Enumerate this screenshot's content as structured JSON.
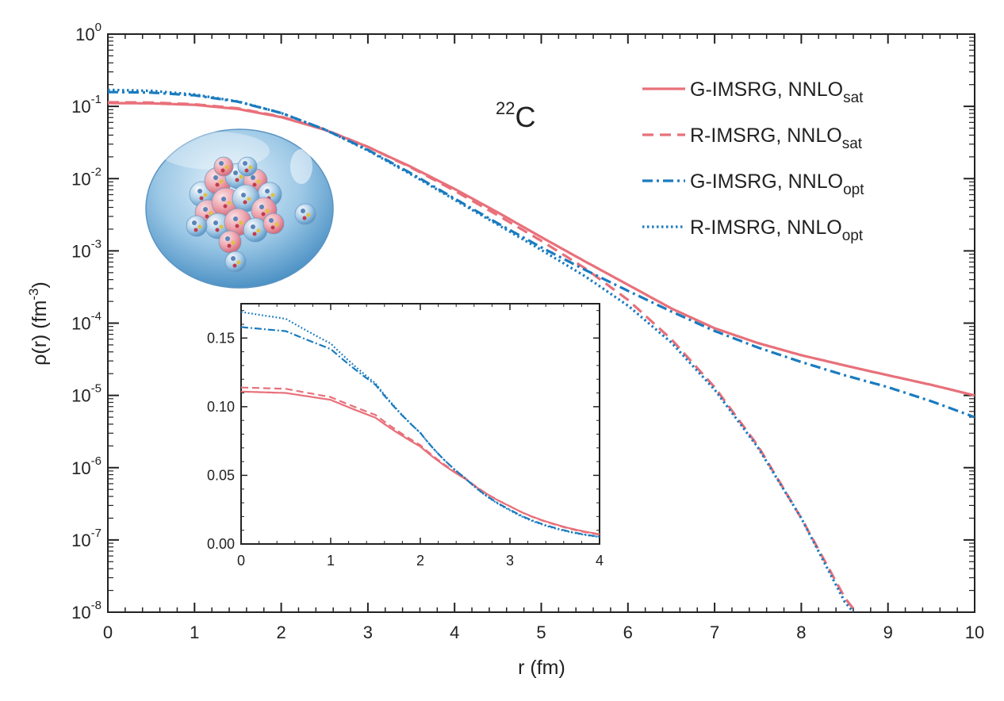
{
  "chart_data": [
    {
      "type": "line",
      "xlabel": "r (fm)",
      "ylabel_text": "ρ(r) (fm",
      "ylabel_exp": "-3",
      "ylabel_close": ")",
      "yscale": "log",
      "xlim": [
        0,
        10
      ],
      "ylim": [
        1e-08,
        1
      ],
      "x_ticks": [
        "0",
        "1",
        "2",
        "3",
        "4",
        "5",
        "6",
        "7",
        "8",
        "9",
        "10"
      ],
      "y_ticks": [
        {
          "base": "10",
          "exp": "0"
        },
        {
          "base": "10",
          "exp": "-1"
        },
        {
          "base": "10",
          "exp": "-2"
        },
        {
          "base": "10",
          "exp": "-3"
        },
        {
          "base": "10",
          "exp": "-4"
        },
        {
          "base": "10",
          "exp": "-5"
        },
        {
          "base": "10",
          "exp": "-6"
        },
        {
          "base": "10",
          "exp": "-7"
        },
        {
          "base": "10",
          "exp": "-8"
        }
      ],
      "annotation": {
        "mass": "22",
        "element": "C"
      },
      "series": [
        {
          "name_main": "G-IMSRG, NNLO",
          "name_sub": "sat",
          "color": "#e8707a",
          "style": "solid",
          "x": [
            0,
            0.5,
            1,
            1.5,
            2,
            2.5,
            3,
            3.5,
            4,
            4.5,
            5,
            5.5,
            6,
            6.5,
            7,
            7.5,
            8,
            8.5,
            9,
            9.5,
            10
          ],
          "y": [
            0.111,
            0.11,
            0.105,
            0.092,
            0.071,
            0.0475,
            0.0275,
            0.0145,
            0.0072,
            0.0034,
            0.00155,
            0.00072,
            0.00034,
            0.00016,
            8.5e-05,
            5.3e-05,
            3.6e-05,
            2.6e-05,
            1.9e-05,
            1.4e-05,
            1e-05
          ]
        },
        {
          "name_main": "R-IMSRG, NNLO",
          "name_sub": "sat",
          "color": "#e8707a",
          "style": "dashed",
          "x": [
            0,
            0.5,
            1,
            1.5,
            2,
            2.5,
            3,
            3.5,
            4,
            4.5,
            5,
            5.5,
            6,
            6.5,
            7,
            7.5,
            8,
            8.5,
            8.63
          ],
          "y": [
            0.114,
            0.113,
            0.107,
            0.094,
            0.072,
            0.048,
            0.0275,
            0.0142,
            0.0068,
            0.0031,
            0.00138,
            0.00058,
            0.00021,
            6e-05,
            1.3e-05,
            2e-06,
            2e-07,
            1.6e-08,
            1e-08
          ]
        },
        {
          "name_main": "G-IMSRG, NNLO",
          "name_sub": "opt",
          "color": "#1a7bbf",
          "style": "dashdot",
          "x": [
            0,
            0.5,
            1,
            1.5,
            2,
            2.5,
            3,
            3.5,
            4,
            4.5,
            5,
            5.5,
            6,
            6.5,
            7,
            7.5,
            8,
            8.5,
            9,
            9.5,
            10
          ],
          "y": [
            0.158,
            0.155,
            0.142,
            0.116,
            0.081,
            0.048,
            0.025,
            0.0118,
            0.0053,
            0.0024,
            0.00112,
            0.00055,
            0.00028,
            0.000145,
            7.8e-05,
            4.6e-05,
            2.9e-05,
            1.9e-05,
            1.3e-05,
            8.3e-06,
            5e-06
          ]
        },
        {
          "name_main": "R-IMSRG, NNLO",
          "name_sub": "opt",
          "color": "#1a7bbf",
          "style": "dotted",
          "x": [
            0,
            0.5,
            1,
            1.5,
            2,
            2.5,
            3,
            3.5,
            4,
            4.5,
            5,
            5.5,
            6,
            6.5,
            7,
            7.5,
            8,
            8.5,
            8.6
          ],
          "y": [
            0.169,
            0.164,
            0.146,
            0.117,
            0.081,
            0.048,
            0.0245,
            0.0114,
            0.0051,
            0.0023,
            0.00103,
            0.00045,
            0.000175,
            5.4e-05,
            1.2e-05,
            1.9e-06,
            2e-07,
            1.4e-08,
            1e-08
          ]
        }
      ]
    },
    {
      "type": "line",
      "role": "inset",
      "xlim": [
        0,
        4
      ],
      "ylim": [
        0,
        0.175
      ],
      "x_ticks": [
        "0",
        "1",
        "2",
        "3",
        "4"
      ],
      "y_ticks": [
        "0.00",
        "0.05",
        "0.10",
        "0.15"
      ],
      "series_ref": "same four series as main panel, linear scale"
    }
  ]
}
